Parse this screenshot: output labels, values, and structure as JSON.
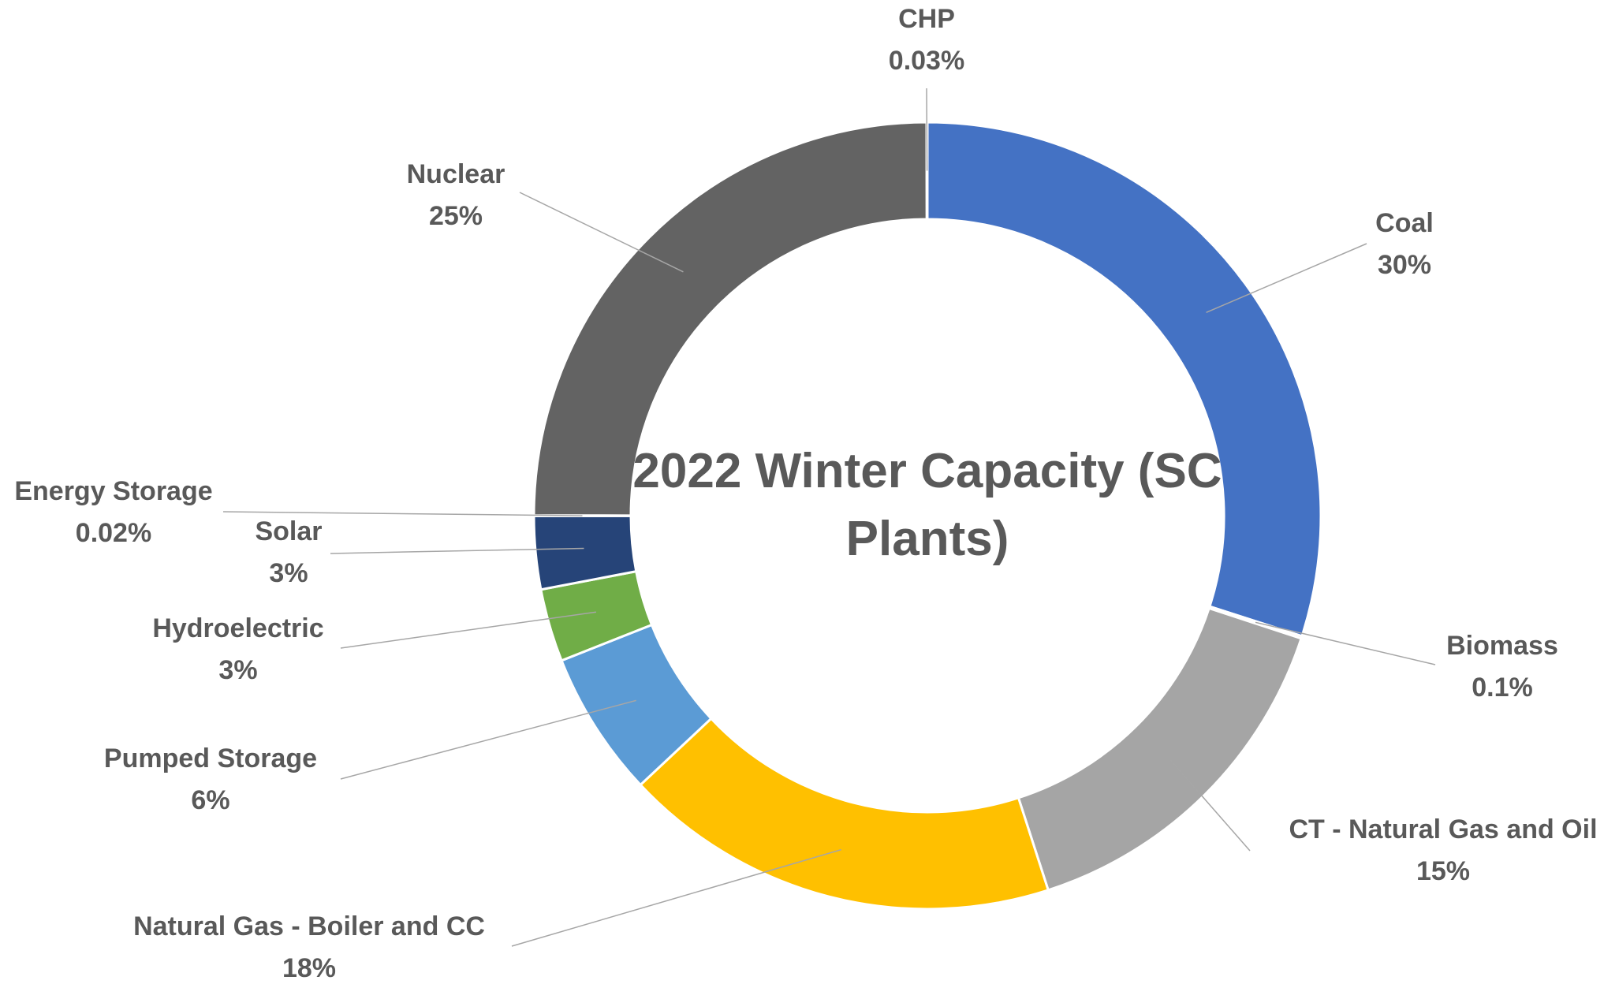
{
  "chart_data": {
    "type": "donut",
    "title": "2022 Winter Capacity (SC Plants)",
    "categories": [
      "Coal",
      "Biomass",
      "CT - Natural Gas and Oil",
      "Natural Gas - Boiler and CC",
      "Pumped Storage",
      "Hydroelectric",
      "Solar",
      "Energy Storage",
      "Nuclear",
      "CHP"
    ],
    "values": [
      30,
      0.1,
      15,
      18,
      6,
      3,
      3,
      0.02,
      25,
      0.03
    ],
    "value_labels": [
      "30%",
      "0.1%",
      "15%",
      "18%",
      "6%",
      "3%",
      "3%",
      "0.02%",
      "25%",
      "0.03%"
    ],
    "colors": [
      "#4472c4",
      "#ed7d31",
      "#a5a5a5",
      "#ffc000",
      "#5b9bd5",
      "#70ad47",
      "#264478",
      "#9e480e",
      "#636363",
      "#997300"
    ]
  }
}
